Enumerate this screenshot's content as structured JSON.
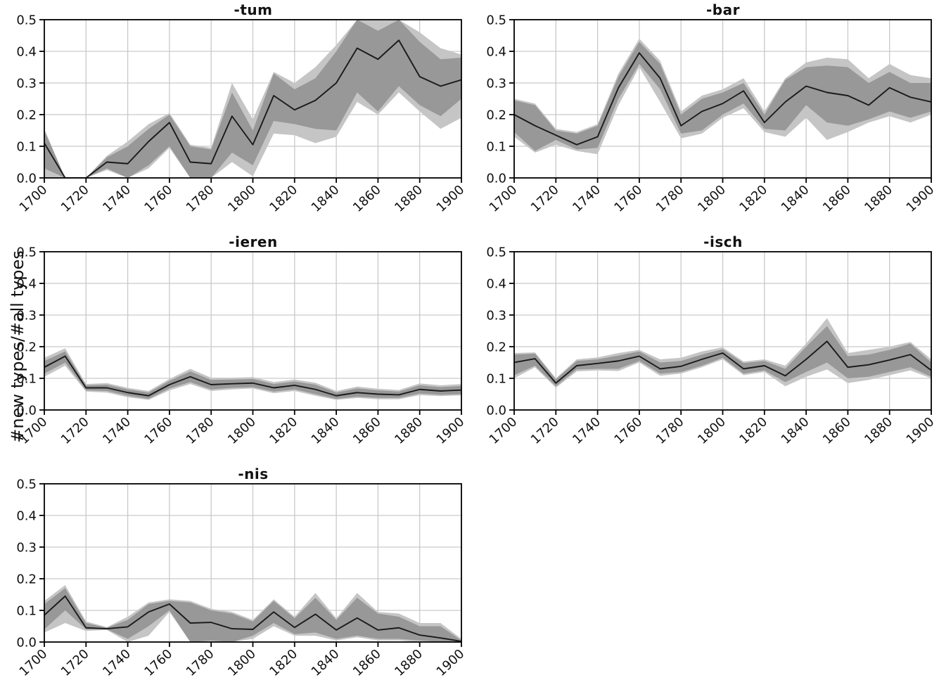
{
  "ylabel": "#new types/#all types",
  "colors": {
    "background": "#ffffff",
    "line": "#1a1a1a",
    "band_inner": "#989898",
    "band_outer": "#c5c5c5",
    "grid": "#c9c9c9",
    "spine": "#000000",
    "tick_label": "#111111"
  },
  "axis": {
    "xlim": [
      1700,
      1900
    ],
    "ylim": [
      0,
      0.5
    ],
    "x_ticks": [
      1700,
      1720,
      1740,
      1760,
      1780,
      1800,
      1820,
      1840,
      1860,
      1880,
      1900
    ],
    "y_ticks": [
      0,
      0.1,
      0.2,
      0.3,
      0.4,
      0.5
    ],
    "y_tick_labels": [
      "0.0",
      "0.1",
      "0.2",
      "0.3",
      "0.4",
      "0.5"
    ],
    "grid": true
  },
  "chart_data": [
    {
      "type": "line",
      "title": "-tum",
      "xlabel": "",
      "ylabel": "",
      "legend": "none",
      "x": [
        1700,
        1710,
        1720,
        1730,
        1740,
        1750,
        1760,
        1770,
        1780,
        1790,
        1800,
        1810,
        1820,
        1830,
        1840,
        1850,
        1860,
        1870,
        1880,
        1890,
        1900
      ],
      "line": [
        0.11,
        0.0,
        0.0,
        0.05,
        0.045,
        0.115,
        0.175,
        0.05,
        0.045,
        0.195,
        0.105,
        0.26,
        0.215,
        0.245,
        0.3,
        0.41,
        0.375,
        0.435,
        0.32,
        0.29,
        0.31
      ],
      "inner_low": [
        0.03,
        0.0,
        0.0,
        0.03,
        0.0,
        0.04,
        0.1,
        0.0,
        0.0,
        0.08,
        0.04,
        0.18,
        0.17,
        0.155,
        0.15,
        0.27,
        0.21,
        0.29,
        0.23,
        0.195,
        0.25
      ],
      "inner_high": [
        0.15,
        0.0,
        0.0,
        0.065,
        0.1,
        0.155,
        0.2,
        0.1,
        0.09,
        0.27,
        0.15,
        0.33,
        0.28,
        0.315,
        0.4,
        0.5,
        0.465,
        0.5,
        0.43,
        0.375,
        0.38
      ],
      "outer_low": [
        0.0,
        0.0,
        0.0,
        0.025,
        0.0,
        0.03,
        0.095,
        0.0,
        0.0,
        0.05,
        0.005,
        0.14,
        0.135,
        0.11,
        0.13,
        0.24,
        0.2,
        0.27,
        0.21,
        0.155,
        0.19
      ],
      "outer_high": [
        0.155,
        0.0,
        0.0,
        0.07,
        0.115,
        0.17,
        0.205,
        0.105,
        0.095,
        0.3,
        0.185,
        0.335,
        0.3,
        0.35,
        0.42,
        0.5,
        0.5,
        0.5,
        0.46,
        0.41,
        0.39
      ]
    },
    {
      "type": "line",
      "title": "-bar",
      "xlabel": "",
      "ylabel": "",
      "legend": "none",
      "x": [
        1700,
        1710,
        1720,
        1730,
        1740,
        1750,
        1760,
        1770,
        1780,
        1790,
        1800,
        1810,
        1820,
        1830,
        1840,
        1850,
        1860,
        1870,
        1880,
        1890,
        1900
      ],
      "line": [
        0.2,
        0.165,
        0.135,
        0.105,
        0.13,
        0.285,
        0.395,
        0.315,
        0.165,
        0.21,
        0.235,
        0.275,
        0.175,
        0.24,
        0.29,
        0.27,
        0.26,
        0.23,
        0.285,
        0.255,
        0.24
      ],
      "inner_low": [
        0.145,
        0.085,
        0.12,
        0.09,
        0.095,
        0.25,
        0.36,
        0.28,
        0.14,
        0.15,
        0.2,
        0.235,
        0.155,
        0.15,
        0.23,
        0.175,
        0.165,
        0.185,
        0.21,
        0.19,
        0.21
      ],
      "inner_high": [
        0.245,
        0.23,
        0.15,
        0.14,
        0.165,
        0.32,
        0.43,
        0.36,
        0.2,
        0.25,
        0.27,
        0.3,
        0.2,
        0.31,
        0.35,
        0.355,
        0.35,
        0.3,
        0.335,
        0.3,
        0.3
      ],
      "outer_low": [
        0.13,
        0.08,
        0.105,
        0.085,
        0.075,
        0.23,
        0.35,
        0.24,
        0.125,
        0.14,
        0.19,
        0.22,
        0.145,
        0.13,
        0.19,
        0.12,
        0.145,
        0.175,
        0.195,
        0.175,
        0.2
      ],
      "outer_high": [
        0.25,
        0.235,
        0.155,
        0.145,
        0.17,
        0.33,
        0.44,
        0.37,
        0.21,
        0.26,
        0.28,
        0.315,
        0.21,
        0.315,
        0.365,
        0.38,
        0.375,
        0.315,
        0.36,
        0.325,
        0.315
      ]
    },
    {
      "type": "line",
      "title": "-ieren",
      "xlabel": "",
      "ylabel": "",
      "legend": "none",
      "x": [
        1700,
        1710,
        1720,
        1730,
        1740,
        1750,
        1760,
        1770,
        1780,
        1790,
        1800,
        1810,
        1820,
        1830,
        1840,
        1850,
        1860,
        1870,
        1880,
        1890,
        1900
      ],
      "line": [
        0.135,
        0.17,
        0.07,
        0.07,
        0.055,
        0.045,
        0.08,
        0.105,
        0.08,
        0.083,
        0.085,
        0.07,
        0.078,
        0.065,
        0.045,
        0.055,
        0.05,
        0.048,
        0.065,
        0.06,
        0.063
      ],
      "inner_low": [
        0.115,
        0.15,
        0.062,
        0.06,
        0.045,
        0.035,
        0.068,
        0.088,
        0.065,
        0.07,
        0.072,
        0.058,
        0.065,
        0.05,
        0.035,
        0.042,
        0.038,
        0.038,
        0.052,
        0.048,
        0.05
      ],
      "inner_high": [
        0.155,
        0.185,
        0.078,
        0.08,
        0.065,
        0.055,
        0.092,
        0.122,
        0.095,
        0.096,
        0.098,
        0.082,
        0.09,
        0.08,
        0.055,
        0.068,
        0.062,
        0.058,
        0.078,
        0.072,
        0.076
      ],
      "outer_low": [
        0.105,
        0.14,
        0.058,
        0.055,
        0.04,
        0.032,
        0.062,
        0.082,
        0.06,
        0.065,
        0.068,
        0.053,
        0.06,
        0.045,
        0.032,
        0.038,
        0.034,
        0.034,
        0.047,
        0.044,
        0.046
      ],
      "outer_high": [
        0.165,
        0.195,
        0.082,
        0.085,
        0.07,
        0.06,
        0.098,
        0.13,
        0.102,
        0.102,
        0.104,
        0.088,
        0.096,
        0.086,
        0.06,
        0.074,
        0.067,
        0.063,
        0.084,
        0.078,
        0.082
      ]
    },
    {
      "type": "line",
      "title": "-isch",
      "xlabel": "",
      "ylabel": "",
      "legend": "none",
      "x": [
        1700,
        1710,
        1720,
        1730,
        1740,
        1750,
        1760,
        1770,
        1780,
        1790,
        1800,
        1810,
        1820,
        1830,
        1840,
        1850,
        1860,
        1870,
        1880,
        1890,
        1900
      ],
      "line": [
        0.15,
        0.162,
        0.085,
        0.14,
        0.147,
        0.155,
        0.17,
        0.13,
        0.138,
        0.16,
        0.18,
        0.13,
        0.14,
        0.108,
        0.16,
        0.217,
        0.135,
        0.143,
        0.158,
        0.175,
        0.125
      ],
      "inner_low": [
        0.11,
        0.14,
        0.075,
        0.128,
        0.13,
        0.13,
        0.155,
        0.115,
        0.12,
        0.14,
        0.165,
        0.115,
        0.125,
        0.088,
        0.12,
        0.15,
        0.1,
        0.105,
        0.12,
        0.135,
        0.105
      ],
      "inner_high": [
        0.175,
        0.178,
        0.097,
        0.155,
        0.16,
        0.172,
        0.185,
        0.15,
        0.155,
        0.175,
        0.192,
        0.148,
        0.155,
        0.13,
        0.2,
        0.265,
        0.17,
        0.175,
        0.19,
        0.21,
        0.15
      ],
      "outer_low": [
        0.1,
        0.135,
        0.07,
        0.122,
        0.125,
        0.123,
        0.15,
        0.108,
        0.115,
        0.135,
        0.16,
        0.11,
        0.12,
        0.075,
        0.105,
        0.128,
        0.085,
        0.095,
        0.11,
        0.125,
        0.1
      ],
      "outer_high": [
        0.18,
        0.182,
        0.1,
        0.16,
        0.166,
        0.18,
        0.19,
        0.16,
        0.165,
        0.185,
        0.198,
        0.153,
        0.16,
        0.14,
        0.21,
        0.29,
        0.18,
        0.19,
        0.2,
        0.215,
        0.16
      ]
    },
    {
      "type": "line",
      "title": "-nis",
      "xlabel": "",
      "ylabel": "",
      "legend": "none",
      "x": [
        1700,
        1710,
        1720,
        1730,
        1740,
        1750,
        1760,
        1770,
        1780,
        1790,
        1800,
        1810,
        1820,
        1830,
        1840,
        1850,
        1860,
        1870,
        1880,
        1890,
        1900
      ],
      "line": [
        0.085,
        0.145,
        0.045,
        0.042,
        0.048,
        0.095,
        0.12,
        0.06,
        0.062,
        0.042,
        0.04,
        0.095,
        0.046,
        0.088,
        0.038,
        0.076,
        0.038,
        0.045,
        0.022,
        0.013,
        0.002
      ],
      "inner_low": [
        0.04,
        0.1,
        0.04,
        0.04,
        0.01,
        0.05,
        0.1,
        0.0,
        0.005,
        0.0,
        0.02,
        0.06,
        0.025,
        0.03,
        0.01,
        0.02,
        0.01,
        0.01,
        0.005,
        0.0,
        0.0
      ],
      "inner_high": [
        0.12,
        0.17,
        0.06,
        0.045,
        0.07,
        0.12,
        0.13,
        0.125,
        0.1,
        0.09,
        0.065,
        0.13,
        0.075,
        0.14,
        0.07,
        0.14,
        0.09,
        0.08,
        0.05,
        0.05,
        0.005
      ],
      "outer_low": [
        0.03,
        0.06,
        0.035,
        0.038,
        0.0,
        0.02,
        0.095,
        0.0,
        0.0,
        0.0,
        0.01,
        0.05,
        0.02,
        0.02,
        0.005,
        0.015,
        0.005,
        0.005,
        0.0,
        0.0,
        0.0
      ],
      "outer_high": [
        0.13,
        0.18,
        0.065,
        0.047,
        0.08,
        0.125,
        0.135,
        0.13,
        0.105,
        0.095,
        0.07,
        0.135,
        0.08,
        0.155,
        0.075,
        0.155,
        0.095,
        0.09,
        0.06,
        0.06,
        0.01
      ]
    }
  ]
}
